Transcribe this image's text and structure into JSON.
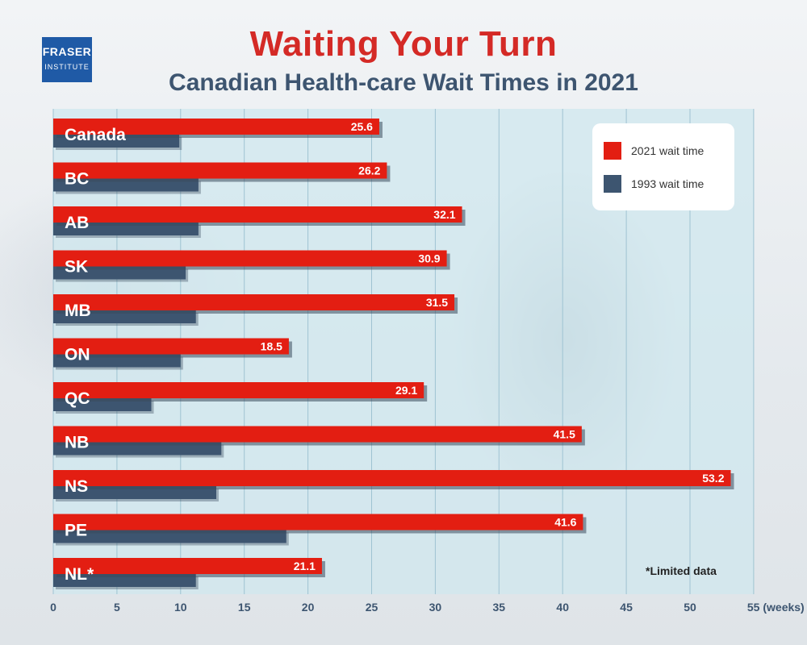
{
  "header": {
    "logo_line1": "FRASER",
    "logo_line2": "INSTITUTE",
    "title": "Waiting Your Turn",
    "subtitle": "Canadian Health-care Wait Times in 2021"
  },
  "note": "*Limited data",
  "chart_data": {
    "type": "bar",
    "orientation": "horizontal",
    "title": "Waiting Your Turn",
    "subtitle": "Canadian Health-care Wait Times in 2021",
    "categories": [
      "Canada",
      "BC",
      "AB",
      "SK",
      "MB",
      "ON",
      "QC",
      "NB",
      "NS",
      "PE",
      "NL*"
    ],
    "series": [
      {
        "name": "2021 wait time",
        "color": "#e31e12",
        "values": [
          25.6,
          26.2,
          32.1,
          30.9,
          31.5,
          18.5,
          29.1,
          41.5,
          53.2,
          41.6,
          21.1
        ],
        "labels": [
          "25.6",
          "26.2",
          "32.1",
          "30.9",
          "31.5",
          "18.5",
          "29.1",
          "41.5",
          "53.2",
          "41.6",
          "21.1"
        ]
      },
      {
        "name": "1993 wait time",
        "color": "#3d5570",
        "values": [
          9.9,
          11.4,
          11.4,
          10.4,
          11.2,
          10.0,
          7.7,
          13.2,
          12.8,
          18.3,
          11.2
        ]
      }
    ],
    "xlim": [
      0,
      55
    ],
    "xticks": [
      "0",
      "5",
      "10",
      "15",
      "20",
      "25",
      "30",
      "35",
      "40",
      "45",
      "50",
      "55 (weeks)"
    ],
    "grid": true,
    "legend_position": "top-right"
  }
}
